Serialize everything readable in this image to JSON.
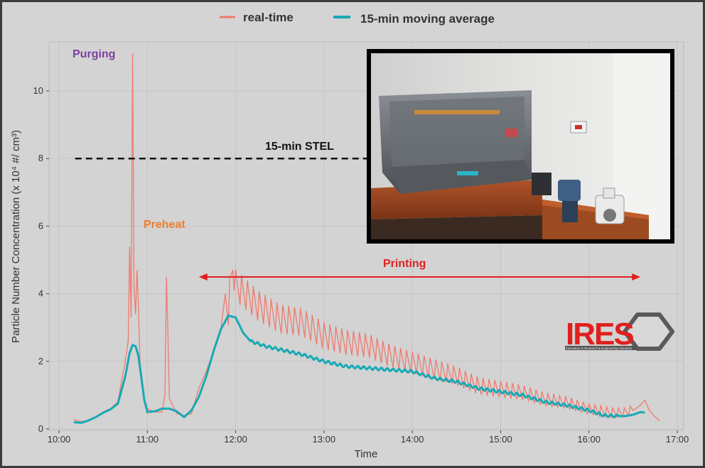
{
  "colors": {
    "realtime": "#f07a6e",
    "average": "#17a9b5",
    "purging": "#7b3fa0",
    "preheat": "#f07d2a",
    "printing": "#e0201e",
    "stel": "#111111",
    "logo_red": "#e0201e",
    "logo_grey": "#555555"
  },
  "legend": {
    "realtime": "real-time",
    "average": "15-min moving average"
  },
  "annotations": {
    "purging": "Purging",
    "preheat": "Preheat",
    "printing": "Printing",
    "stel": "15-min STEL"
  },
  "logo": {
    "text": "IRES",
    "tagline": "Innovation in Research & Engineering Solutions"
  },
  "photo": {
    "icon": "3d-printer-photo"
  },
  "chart_data": {
    "type": "line",
    "xlabel": "Time",
    "ylabel": "Particle Number Concentration (x 10⁴ #/ cm³)",
    "x_ticks": [
      "10:00",
      "11:00",
      "12:00",
      "13:00",
      "14:00",
      "15:00",
      "16:00",
      "17:00"
    ],
    "y_ticks": [
      0,
      2,
      4,
      6,
      8,
      10
    ],
    "xlim": [
      "10:00",
      "17:00"
    ],
    "ylim": [
      0,
      11.2
    ],
    "grid": true,
    "legend_position": "top",
    "stel": {
      "value": 8.0,
      "from": "10:00",
      "to": "13:30",
      "style": "dashed"
    },
    "printing_span": {
      "from": "11:35",
      "to": "16:35"
    },
    "series": [
      {
        "name": "real-time",
        "x": [
          "10:10",
          "10:15",
          "10:20",
          "10:25",
          "10:30",
          "10:35",
          "10:40",
          "10:45",
          "10:47",
          "10:48",
          "10:49",
          "10:50",
          "10:51",
          "10:52",
          "10:53",
          "10:54",
          "10:55",
          "10:58",
          "11:00",
          "11:05",
          "11:10",
          "11:12",
          "11:13",
          "11:14",
          "11:15",
          "11:20",
          "11:25",
          "11:30",
          "11:35",
          "11:40",
          "11:45",
          "11:50",
          "11:53",
          "11:55",
          "11:58",
          "12:00",
          "12:15",
          "12:30",
          "12:45",
          "13:00",
          "13:15",
          "13:30",
          "13:45",
          "14:00",
          "14:15",
          "14:30",
          "14:45",
          "15:00",
          "15:15",
          "15:30",
          "15:45",
          "16:00",
          "16:15",
          "16:25",
          "16:30",
          "16:35",
          "16:38",
          "16:41",
          "16:45",
          "16:48"
        ],
        "values": [
          0.28,
          0.22,
          0.25,
          0.35,
          0.5,
          0.6,
          0.8,
          2.0,
          2.6,
          5.4,
          3.3,
          11.1,
          4.2,
          3.4,
          4.7,
          3.5,
          2.0,
          0.9,
          0.6,
          0.5,
          0.5,
          1.0,
          4.5,
          2.8,
          0.9,
          0.45,
          0.4,
          0.45,
          1.2,
          1.7,
          2.3,
          3.0,
          4.0,
          3.6,
          4.9,
          4.3,
          3.7,
          3.3,
          3.2,
          2.8,
          2.6,
          2.5,
          2.2,
          2.0,
          1.8,
          1.6,
          1.3,
          1.2,
          1.1,
          0.9,
          0.8,
          0.6,
          0.5,
          0.5,
          0.6,
          0.7,
          0.85,
          0.55,
          0.35,
          0.25
        ],
        "oscillation": {
          "from": "11:55",
          "to": "16:30",
          "amplitude_start": 0.95,
          "amplitude_end": 0.25,
          "period_min": 4
        }
      },
      {
        "name": "15-min moving average",
        "x": [
          "10:10",
          "10:15",
          "10:20",
          "10:25",
          "10:30",
          "10:35",
          "10:40",
          "10:45",
          "10:48",
          "10:50",
          "10:52",
          "10:54",
          "10:56",
          "10:58",
          "11:00",
          "11:05",
          "11:10",
          "11:15",
          "11:20",
          "11:25",
          "11:30",
          "11:35",
          "11:40",
          "11:45",
          "11:50",
          "11:55",
          "12:00",
          "12:05",
          "12:10",
          "12:20",
          "12:30",
          "12:45",
          "13:00",
          "13:15",
          "13:30",
          "13:45",
          "14:00",
          "14:15",
          "14:30",
          "14:45",
          "15:00",
          "15:15",
          "15:30",
          "15:45",
          "16:00",
          "16:10",
          "16:20",
          "16:25",
          "16:30",
          "16:35",
          "16:38"
        ],
        "values": [
          0.2,
          0.18,
          0.25,
          0.35,
          0.48,
          0.58,
          0.75,
          1.55,
          2.25,
          2.48,
          2.45,
          2.15,
          1.5,
          0.85,
          0.5,
          0.52,
          0.6,
          0.6,
          0.52,
          0.35,
          0.55,
          0.95,
          1.55,
          2.3,
          2.95,
          3.35,
          3.3,
          2.85,
          2.6,
          2.45,
          2.35,
          2.2,
          2.0,
          1.85,
          1.8,
          1.75,
          1.7,
          1.5,
          1.4,
          1.2,
          1.1,
          1.0,
          0.8,
          0.7,
          0.55,
          0.4,
          0.38,
          0.38,
          0.42,
          0.5,
          0.48
        ]
      }
    ]
  }
}
